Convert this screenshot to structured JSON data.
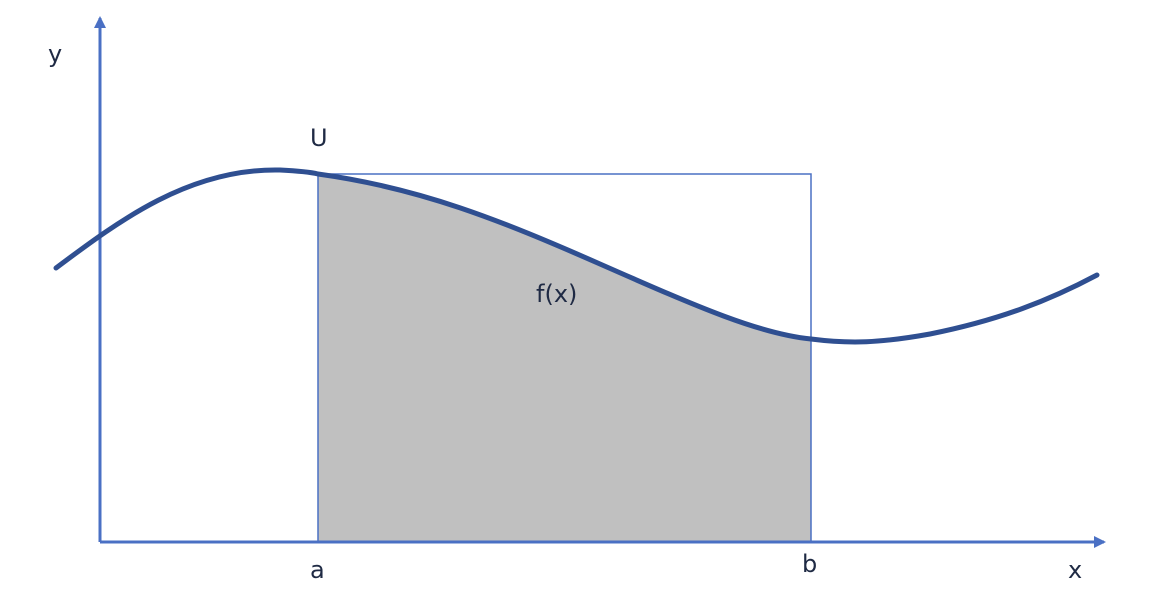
{
  "labels": {
    "y_axis": "y",
    "x_axis": "x",
    "upper": "U",
    "a": "a",
    "b": "b",
    "function": "f(x)"
  },
  "colors": {
    "axis": "#4a70c4",
    "curve": "#2f4f91",
    "rectangle_border": "#4a70c4",
    "shaded_area": "#c0c0c0",
    "text": "#1f2a44"
  }
}
